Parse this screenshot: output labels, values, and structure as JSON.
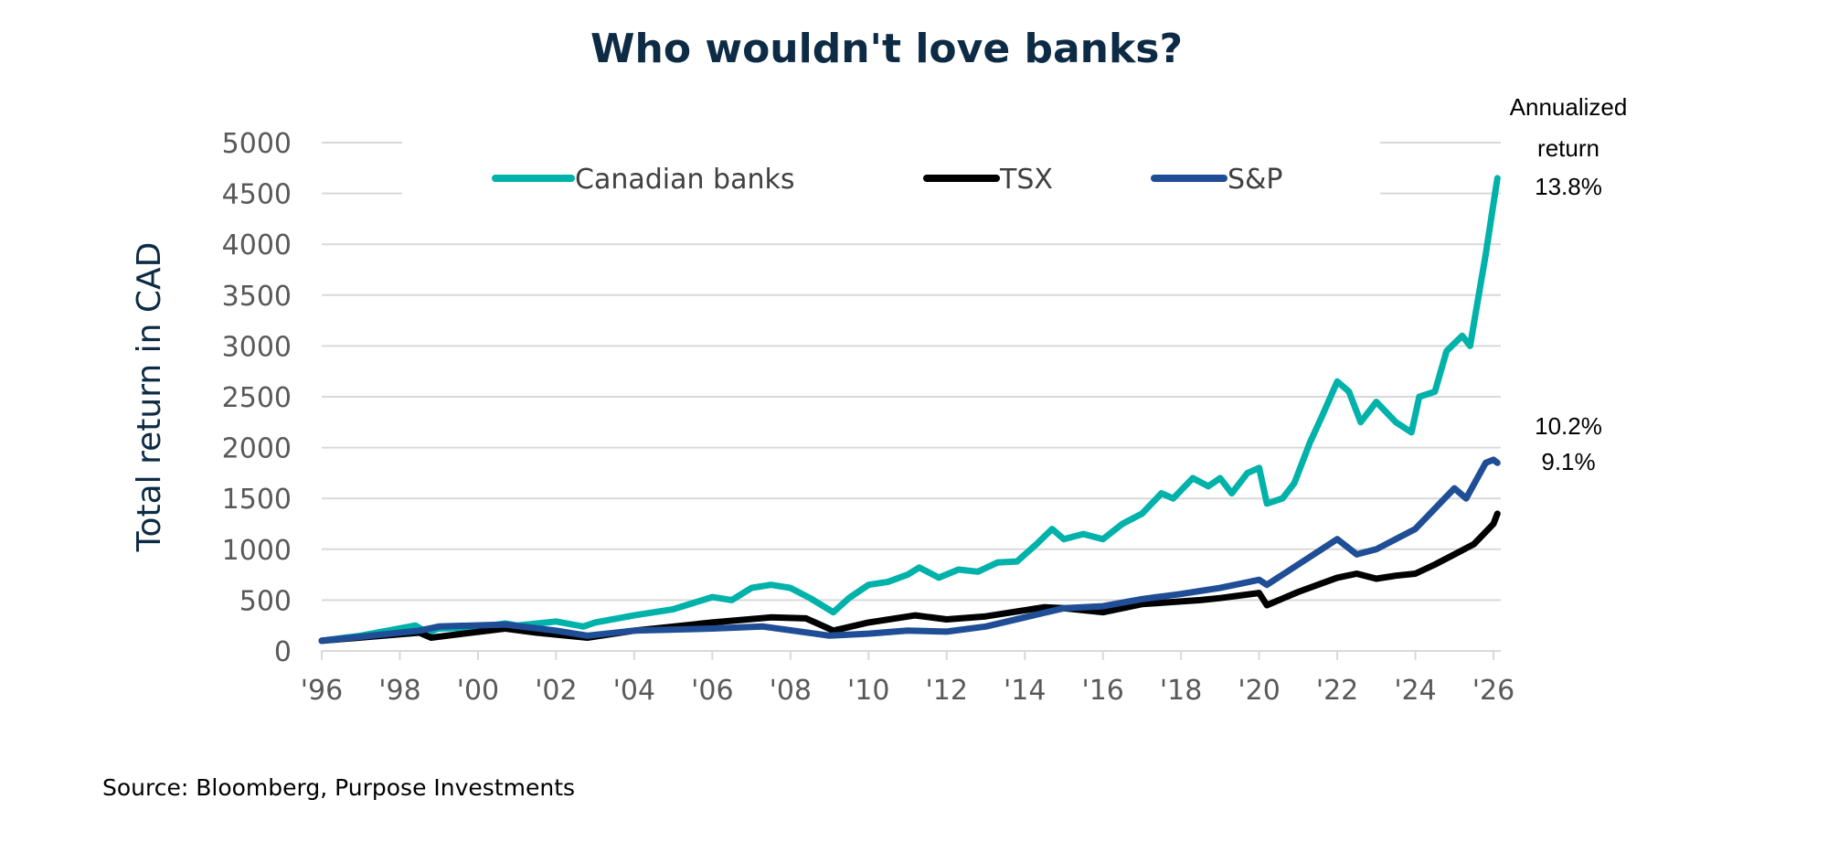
{
  "chart_data": {
    "type": "line",
    "title": "Who wouldn't love banks?",
    "ylabel": "Total return in CAD",
    "xlabel": "",
    "ylim": [
      0,
      5000
    ],
    "xlim": [
      1996,
      2026.1
    ],
    "grid": true,
    "legend_position": "top",
    "yticks": [
      "0",
      "500",
      "1000",
      "1500",
      "2000",
      "2500",
      "3000",
      "3500",
      "4000",
      "4500",
      "5000"
    ],
    "xticks": [
      "'96",
      "'98",
      "'00",
      "'02",
      "'04",
      "'06",
      "'08",
      "'10",
      "'12",
      "'14",
      "'16",
      "'18",
      "'20",
      "'22",
      "'24",
      "'26"
    ],
    "series": [
      {
        "name": "Canadian banks",
        "color": "#00b2a9",
        "points": [
          [
            1996,
            100
          ],
          [
            1997,
            150
          ],
          [
            1998.4,
            250
          ],
          [
            1998.7,
            180
          ],
          [
            1999,
            220
          ],
          [
            2000,
            230
          ],
          [
            2000.7,
            270
          ],
          [
            2001,
            250
          ],
          [
            2002,
            290
          ],
          [
            2002.7,
            240
          ],
          [
            2003,
            280
          ],
          [
            2004,
            350
          ],
          [
            2005,
            410
          ],
          [
            2006,
            530
          ],
          [
            2006.5,
            500
          ],
          [
            2007,
            620
          ],
          [
            2007.5,
            650
          ],
          [
            2008,
            620
          ],
          [
            2008.5,
            520
          ],
          [
            2009.1,
            380
          ],
          [
            2009.5,
            520
          ],
          [
            2010,
            650
          ],
          [
            2010.5,
            680
          ],
          [
            2011,
            750
          ],
          [
            2011.3,
            820
          ],
          [
            2011.8,
            720
          ],
          [
            2012.3,
            800
          ],
          [
            2012.8,
            780
          ],
          [
            2013.3,
            870
          ],
          [
            2013.8,
            880
          ],
          [
            2014.3,
            1050
          ],
          [
            2014.7,
            1200
          ],
          [
            2015,
            1100
          ],
          [
            2015.5,
            1150
          ],
          [
            2016,
            1100
          ],
          [
            2016.5,
            1250
          ],
          [
            2017,
            1350
          ],
          [
            2017.5,
            1550
          ],
          [
            2017.8,
            1500
          ],
          [
            2018.3,
            1700
          ],
          [
            2018.7,
            1620
          ],
          [
            2019,
            1700
          ],
          [
            2019.3,
            1550
          ],
          [
            2019.7,
            1750
          ],
          [
            2020,
            1800
          ],
          [
            2020.2,
            1450
          ],
          [
            2020.6,
            1500
          ],
          [
            2020.9,
            1650
          ],
          [
            2021.3,
            2050
          ],
          [
            2021.6,
            2300
          ],
          [
            2022,
            2650
          ],
          [
            2022.3,
            2550
          ],
          [
            2022.6,
            2250
          ],
          [
            2023,
            2450
          ],
          [
            2023.5,
            2250
          ],
          [
            2023.9,
            2150
          ],
          [
            2024.1,
            2500
          ],
          [
            2024.5,
            2550
          ],
          [
            2024.8,
            2950
          ],
          [
            2025.2,
            3100
          ],
          [
            2025.4,
            3000
          ],
          [
            2025.6,
            3450
          ],
          [
            2025.8,
            3900
          ],
          [
            2026,
            4400
          ],
          [
            2026.1,
            4650
          ]
        ]
      },
      {
        "name": "TSX",
        "color": "#000000",
        "points": [
          [
            1996,
            100
          ],
          [
            1998.5,
            180
          ],
          [
            1998.8,
            130
          ],
          [
            2000.7,
            220
          ],
          [
            2001.5,
            180
          ],
          [
            2002.8,
            130
          ],
          [
            2004,
            200
          ],
          [
            2006,
            280
          ],
          [
            2007.5,
            330
          ],
          [
            2008.4,
            320
          ],
          [
            2009.1,
            200
          ],
          [
            2010,
            280
          ],
          [
            2011.2,
            350
          ],
          [
            2012,
            310
          ],
          [
            2013,
            340
          ],
          [
            2014.5,
            430
          ],
          [
            2015,
            420
          ],
          [
            2016,
            380
          ],
          [
            2017,
            460
          ],
          [
            2018.5,
            500
          ],
          [
            2019,
            520
          ],
          [
            2020,
            570
          ],
          [
            2020.2,
            450
          ],
          [
            2021,
            580
          ],
          [
            2022,
            720
          ],
          [
            2022.5,
            760
          ],
          [
            2023,
            710
          ],
          [
            2023.5,
            740
          ],
          [
            2024,
            760
          ],
          [
            2024.5,
            850
          ],
          [
            2025,
            950
          ],
          [
            2025.5,
            1050
          ],
          [
            2026,
            1250
          ],
          [
            2026.1,
            1350
          ]
        ]
      },
      {
        "name": "S&P",
        "color": "#1f4e96",
        "points": [
          [
            1996,
            100
          ],
          [
            1998.5,
            200
          ],
          [
            1999,
            240
          ],
          [
            2000.7,
            260
          ],
          [
            2002,
            200
          ],
          [
            2002.8,
            150
          ],
          [
            2004,
            200
          ],
          [
            2006,
            220
          ],
          [
            2007.3,
            240
          ],
          [
            2009,
            150
          ],
          [
            2010,
            170
          ],
          [
            2011,
            200
          ],
          [
            2012,
            190
          ],
          [
            2013,
            240
          ],
          [
            2014,
            330
          ],
          [
            2015,
            420
          ],
          [
            2016,
            440
          ],
          [
            2017,
            510
          ],
          [
            2018,
            560
          ],
          [
            2019,
            620
          ],
          [
            2020,
            700
          ],
          [
            2020.2,
            650
          ],
          [
            2021,
            850
          ],
          [
            2022,
            1100
          ],
          [
            2022.5,
            950
          ],
          [
            2023,
            1000
          ],
          [
            2024,
            1200
          ],
          [
            2024.5,
            1400
          ],
          [
            2025,
            1600
          ],
          [
            2025.3,
            1500
          ],
          [
            2025.8,
            1850
          ],
          [
            2026,
            1880
          ],
          [
            2026.1,
            1850
          ]
        ]
      }
    ],
    "annotations": {
      "header_line1": "Annualized",
      "header_line2": "return",
      "banks": "13.8%",
      "sp": "10.2%",
      "tsx": "9.1%"
    },
    "source": "Source: Bloomberg, Purpose Investments"
  }
}
